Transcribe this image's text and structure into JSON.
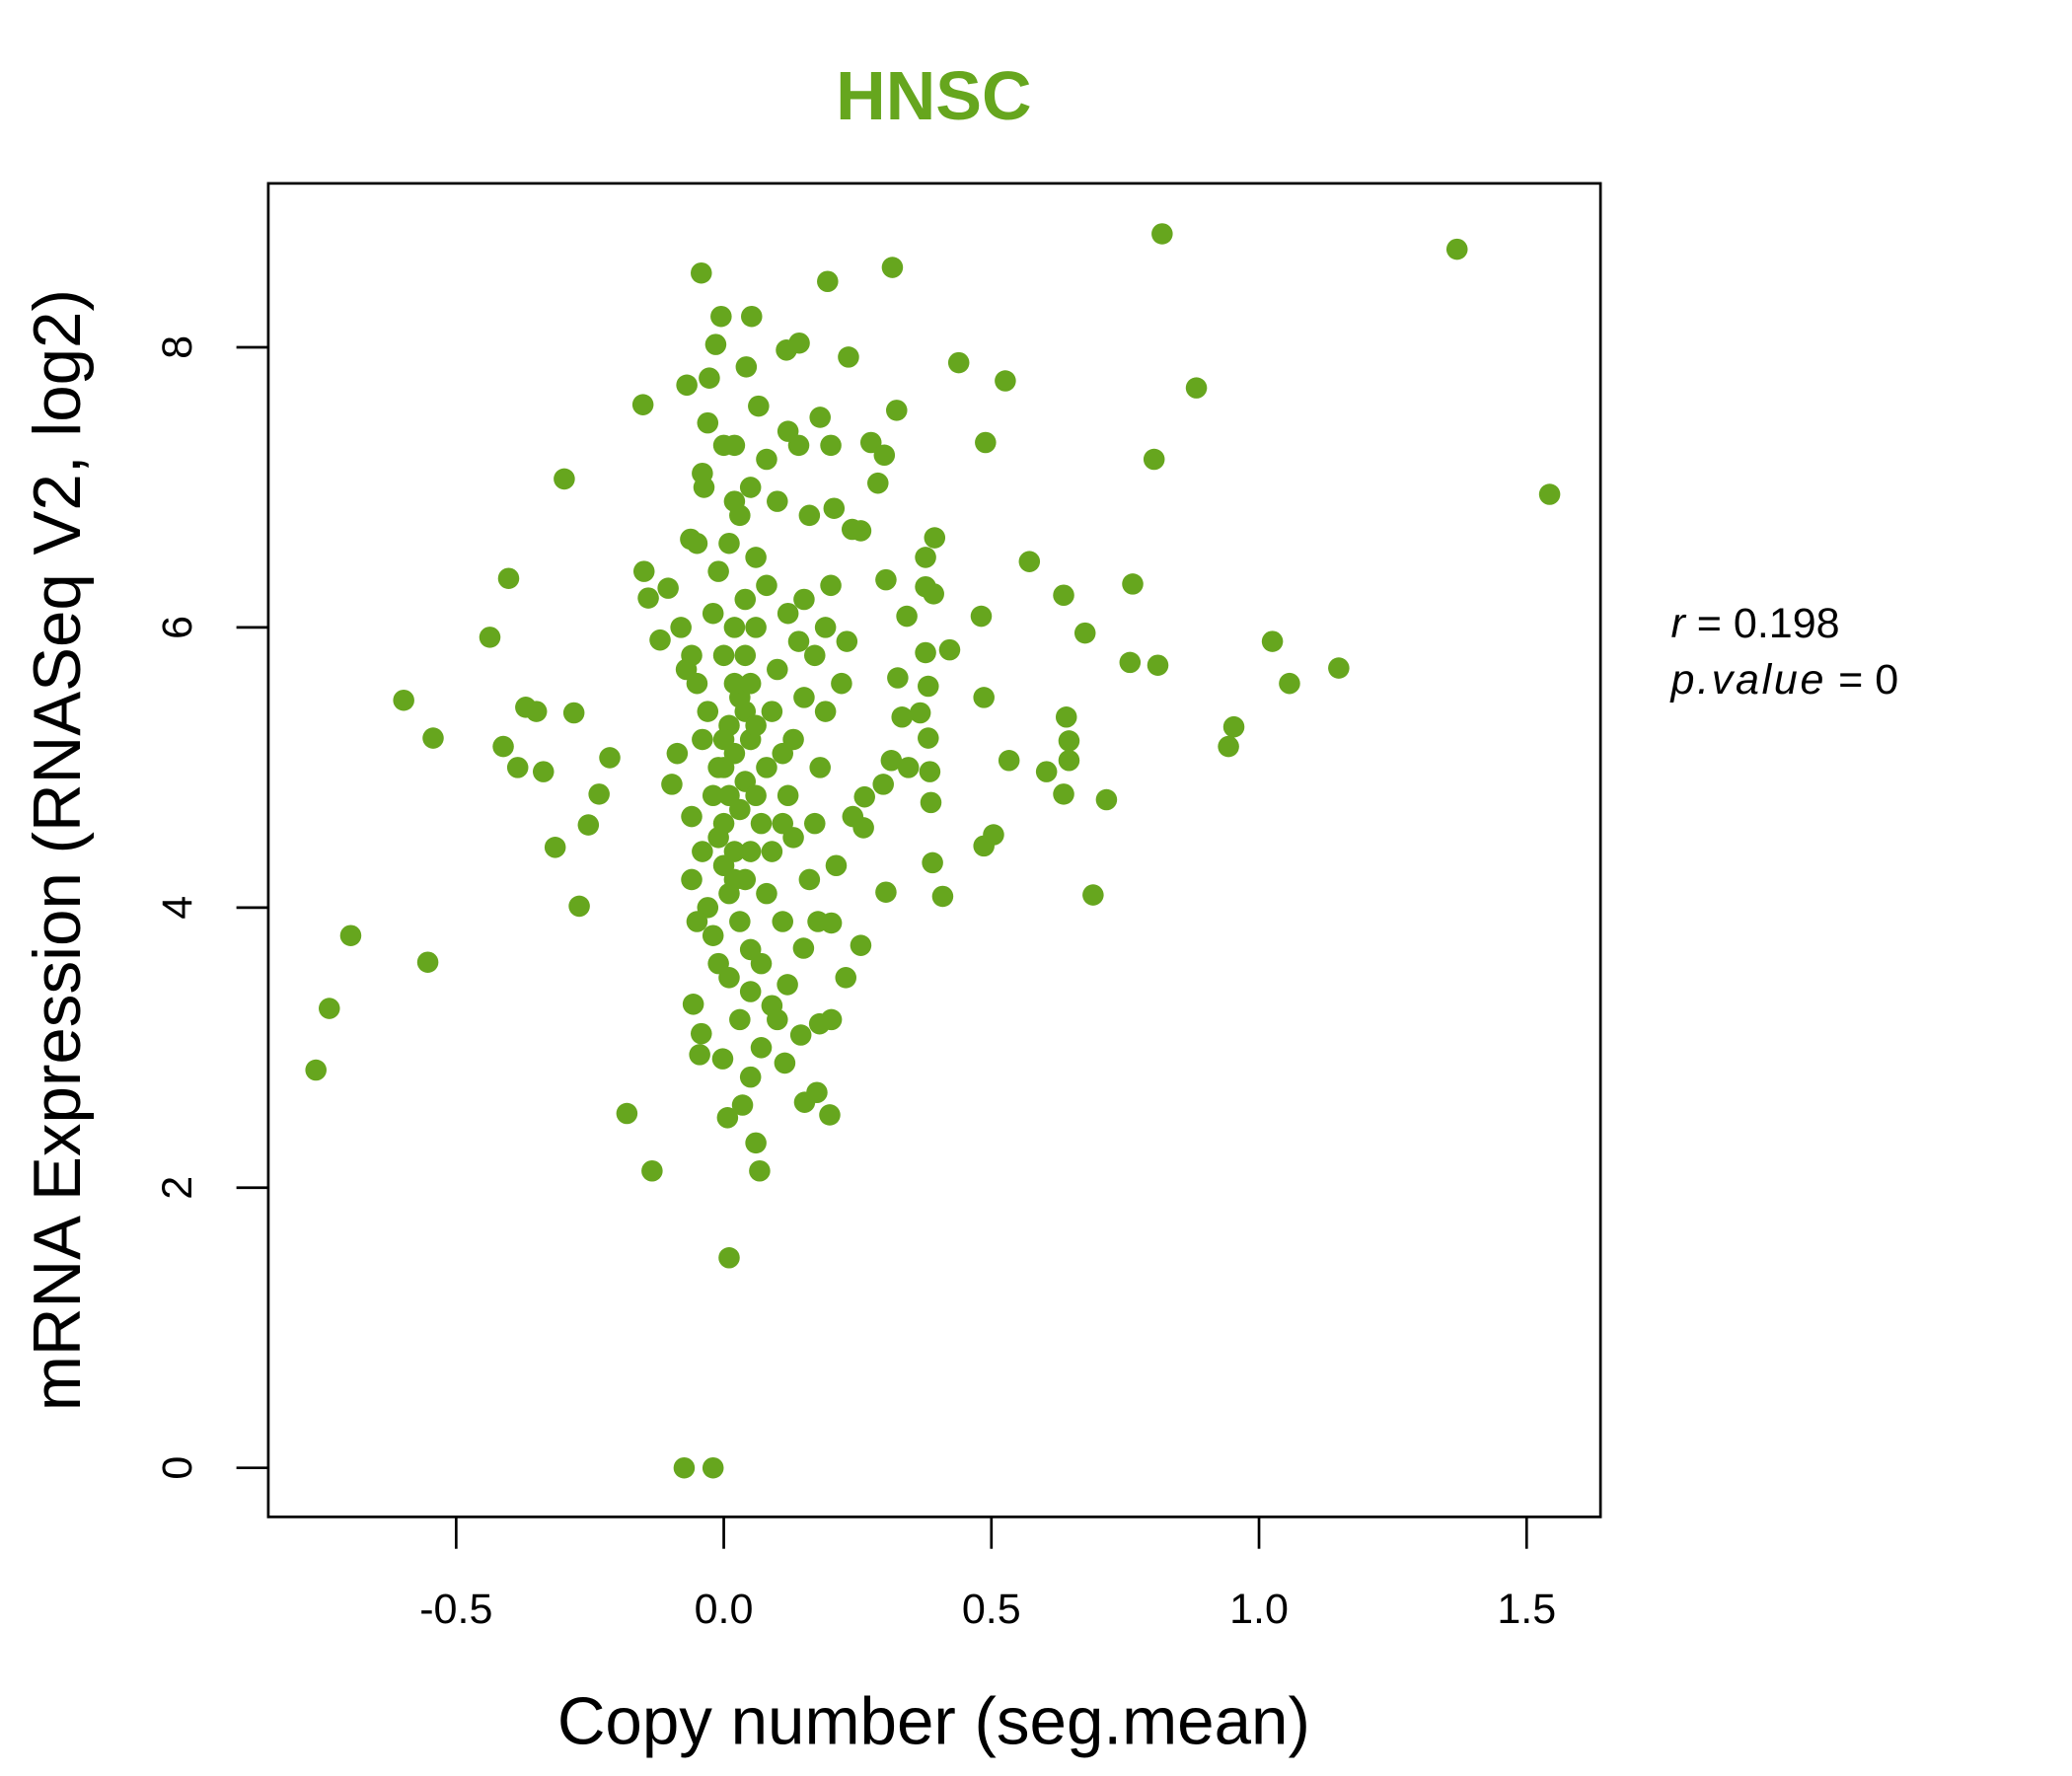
{
  "chart_data": {
    "type": "scatter",
    "title": "HNSC",
    "xlabel": "Copy number (seg.mean)",
    "ylabel": "mRNA Expression (RNASeq V2, log2)",
    "xlim": [
      -0.851,
      1.638
    ],
    "ylim": [
      -0.35,
      9.17
    ],
    "xticks": [
      -0.5,
      0.0,
      0.5,
      1.0,
      1.5
    ],
    "xtick_labels": [
      "-0.5",
      "0.0",
      "0.5",
      "1.0",
      "1.5"
    ],
    "yticks": [
      0,
      2,
      4,
      6,
      8
    ],
    "ytick_labels": [
      "0",
      "2",
      "4",
      "6",
      "8"
    ],
    "grid": false,
    "color": "#66a61e",
    "annotation": {
      "r_label": "r",
      "r_value": "0.198",
      "p_label": "p.value",
      "p_value": "0"
    },
    "points": [
      [
        -0.762,
        2.84
      ],
      [
        -0.737,
        3.28
      ],
      [
        -0.697,
        3.8
      ],
      [
        -0.553,
        3.61
      ],
      [
        -0.598,
        5.48
      ],
      [
        -0.543,
        5.21
      ],
      [
        -0.437,
        5.93
      ],
      [
        -0.402,
        6.35
      ],
      [
        -0.412,
        5.15
      ],
      [
        -0.385,
        5.0
      ],
      [
        -0.37,
        5.43
      ],
      [
        -0.35,
        5.4
      ],
      [
        -0.337,
        4.97
      ],
      [
        -0.315,
        4.43
      ],
      [
        -0.298,
        7.06
      ],
      [
        -0.28,
        5.39
      ],
      [
        -0.27,
        4.01
      ],
      [
        -0.253,
        4.59
      ],
      [
        -0.233,
        4.81
      ],
      [
        -0.213,
        5.07
      ],
      [
        -0.181,
        2.53
      ],
      [
        -0.151,
        7.59
      ],
      [
        -0.149,
        6.4
      ],
      [
        -0.141,
        6.21
      ],
      [
        -0.134,
        2.12
      ],
      [
        -0.119,
        5.91
      ],
      [
        -0.104,
        6.28
      ],
      [
        -0.097,
        4.88
      ],
      [
        -0.087,
        5.1
      ],
      [
        -0.074,
        0
      ],
      [
        -0.02,
        0
      ],
      [
        -0.069,
        7.73
      ],
      [
        -0.062,
        6.63
      ],
      [
        -0.06,
        4.65
      ],
      [
        -0.057,
        3.31
      ],
      [
        -0.045,
        2.95
      ],
      [
        -0.042,
        8.53
      ],
      [
        -0.037,
        7.0
      ],
      [
        -0.042,
        3.1
      ],
      [
        -0.03,
        7.46
      ],
      [
        -0.027,
        7.78
      ],
      [
        -0.015,
        8.02
      ],
      [
        -0.005,
        8.22
      ],
      [
        0.052,
        8.22
      ],
      [
        -0.002,
        2.92
      ],
      [
        0.01,
        1.5
      ],
      [
        0.007,
        2.5
      ],
      [
        0.035,
        2.59
      ],
      [
        0.06,
        2.32
      ],
      [
        0.067,
        2.12
      ],
      [
        0.05,
        2.79
      ],
      [
        0.042,
        7.86
      ],
      [
        0.065,
        7.58
      ],
      [
        0.117,
        7.98
      ],
      [
        0.141,
        8.03
      ],
      [
        0.194,
        8.47
      ],
      [
        0.315,
        8.57
      ],
      [
        0.233,
        7.93
      ],
      [
        0.323,
        7.55
      ],
      [
        0.275,
        7.32
      ],
      [
        0.3,
        7.23
      ],
      [
        0.288,
        7.03
      ],
      [
        0.206,
        6.85
      ],
      [
        0.256,
        6.69
      ],
      [
        0.303,
        6.34
      ],
      [
        0.342,
        6.08
      ],
      [
        0.439,
        7.89
      ],
      [
        0.526,
        7.76
      ],
      [
        0.489,
        7.32
      ],
      [
        0.377,
        6.5
      ],
      [
        0.394,
        6.64
      ],
      [
        0.392,
        6.24
      ],
      [
        0.377,
        6.29
      ],
      [
        0.422,
        5.84
      ],
      [
        0.481,
        6.08
      ],
      [
        0.377,
        5.82
      ],
      [
        0.382,
        5.58
      ],
      [
        0.325,
        5.64
      ],
      [
        0.333,
        5.36
      ],
      [
        0.367,
        5.39
      ],
      [
        0.382,
        5.21
      ],
      [
        0.486,
        5.5
      ],
      [
        0.385,
        4.97
      ],
      [
        0.387,
        4.75
      ],
      [
        0.345,
        5.0
      ],
      [
        0.313,
        5.05
      ],
      [
        0.298,
        4.88
      ],
      [
        0.263,
        4.79
      ],
      [
        0.261,
        4.57
      ],
      [
        0.241,
        4.65
      ],
      [
        0.39,
        4.32
      ],
      [
        0.409,
        4.08
      ],
      [
        0.486,
        4.44
      ],
      [
        0.504,
        4.52
      ],
      [
        0.303,
        4.11
      ],
      [
        0.256,
        3.73
      ],
      [
        0.228,
        3.5
      ],
      [
        0.201,
        3.2
      ],
      [
        0.179,
        3.17
      ],
      [
        0.144,
        3.09
      ],
      [
        0.151,
        2.61
      ],
      [
        0.174,
        2.68
      ],
      [
        0.198,
        2.52
      ],
      [
        0.114,
        2.89
      ],
      [
        0.149,
        3.71
      ],
      [
        0.119,
        3.45
      ],
      [
        0.201,
        3.89
      ],
      [
        0.176,
        3.9
      ],
      [
        0.571,
        6.47
      ],
      [
        0.635,
        6.23
      ],
      [
        0.764,
        6.31
      ],
      [
        0.804,
        7.2
      ],
      [
        0.819,
        8.81
      ],
      [
        0.883,
        7.71
      ],
      [
        0.675,
        5.96
      ],
      [
        0.759,
        5.75
      ],
      [
        0.811,
        5.73
      ],
      [
        1.025,
        5.9
      ],
      [
        1.057,
        5.6
      ],
      [
        1.149,
        5.71
      ],
      [
        1.37,
        8.7
      ],
      [
        1.543,
        6.95
      ],
      [
        0.953,
        5.29
      ],
      [
        0.943,
        5.15
      ],
      [
        0.64,
        5.36
      ],
      [
        0.645,
        5.19
      ],
      [
        0.645,
        5.05
      ],
      [
        0.603,
        4.97
      ],
      [
        0.635,
        4.81
      ],
      [
        0.715,
        4.77
      ],
      [
        0.69,
        4.09
      ],
      [
        0.533,
        5.05
      ],
      [
        0.0,
        5.0
      ],
      [
        0.02,
        5.1
      ],
      [
        0.04,
        4.9
      ],
      [
        0.01,
        5.3
      ],
      [
        0.03,
        5.5
      ],
      [
        0.05,
        5.2
      ],
      [
        0.06,
        4.8
      ],
      [
        0.08,
        5.0
      ],
      [
        0.0,
        4.6
      ],
      [
        0.02,
        4.4
      ],
      [
        0.04,
        4.2
      ],
      [
        -0.01,
        4.5
      ],
      [
        0.01,
        4.1
      ],
      [
        0.03,
        3.9
      ],
      [
        0.05,
        3.7
      ],
      [
        0.07,
        3.6
      ],
      [
        0.0,
        5.8
      ],
      [
        0.02,
        6.0
      ],
      [
        0.04,
        6.2
      ],
      [
        -0.01,
        6.4
      ],
      [
        0.01,
        6.6
      ],
      [
        0.03,
        6.8
      ],
      [
        0.05,
        7.0
      ],
      [
        0.02,
        7.3
      ],
      [
        -0.03,
        5.4
      ],
      [
        -0.05,
        5.6
      ],
      [
        -0.04,
        5.2
      ],
      [
        -0.06,
        5.8
      ],
      [
        -0.02,
        6.1
      ],
      [
        -0.04,
        4.4
      ],
      [
        -0.03,
        4.0
      ],
      [
        -0.02,
        3.8
      ],
      [
        0.09,
        5.4
      ],
      [
        0.1,
        5.7
      ],
      [
        0.11,
        5.1
      ],
      [
        0.12,
        4.8
      ],
      [
        0.13,
        4.5
      ],
      [
        0.14,
        5.9
      ],
      [
        0.15,
        6.2
      ],
      [
        0.16,
        4.2
      ],
      [
        0.17,
        4.6
      ],
      [
        0.18,
        5.0
      ],
      [
        0.19,
        5.4
      ],
      [
        0.2,
        6.3
      ],
      [
        0.21,
        4.3
      ],
      [
        0.22,
        5.6
      ],
      [
        0.23,
        5.9
      ],
      [
        0.24,
        6.7
      ],
      [
        0.1,
        6.9
      ],
      [
        0.12,
        7.4
      ],
      [
        0.14,
        7.3
      ],
      [
        0.16,
        6.8
      ],
      [
        0.18,
        7.5
      ],
      [
        0.2,
        7.3
      ],
      [
        0.08,
        7.2
      ],
      [
        0.06,
        6.5
      ],
      [
        0.09,
        3.3
      ],
      [
        0.1,
        3.2
      ],
      [
        0.07,
        3.0
      ],
      [
        0.05,
        3.4
      ],
      [
        0.03,
        3.2
      ],
      [
        0.01,
        3.5
      ],
      [
        -0.01,
        3.6
      ],
      [
        0.11,
        3.9
      ],
      [
        0.0,
        5.2
      ],
      [
        0.01,
        4.8
      ],
      [
        0.02,
        5.6
      ],
      [
        0.03,
        4.7
      ],
      [
        0.04,
        5.4
      ],
      [
        0.05,
        5.6
      ],
      [
        0.06,
        5.3
      ],
      [
        0.07,
        4.6
      ],
      [
        -0.01,
        5.0
      ],
      [
        -0.02,
        4.8
      ],
      [
        0.0,
        4.3
      ],
      [
        0.02,
        4.2
      ],
      [
        0.05,
        4.4
      ],
      [
        0.08,
        4.1
      ],
      [
        0.09,
        4.4
      ],
      [
        0.11,
        4.6
      ],
      [
        0.13,
        5.2
      ],
      [
        0.15,
        5.5
      ],
      [
        0.17,
        5.8
      ],
      [
        0.19,
        6.0
      ],
      [
        0.12,
        6.1
      ],
      [
        0.08,
        6.3
      ],
      [
        0.06,
        6.0
      ],
      [
        0.04,
        5.8
      ],
      [
        -0.07,
        5.7
      ],
      [
        -0.08,
        6.0
      ],
      [
        -0.05,
        6.6
      ],
      [
        -0.04,
        7.1
      ],
      [
        0.0,
        7.3
      ],
      [
        0.02,
        6.9
      ],
      [
        -0.06,
        4.2
      ],
      [
        -0.05,
        3.9
      ]
    ]
  }
}
